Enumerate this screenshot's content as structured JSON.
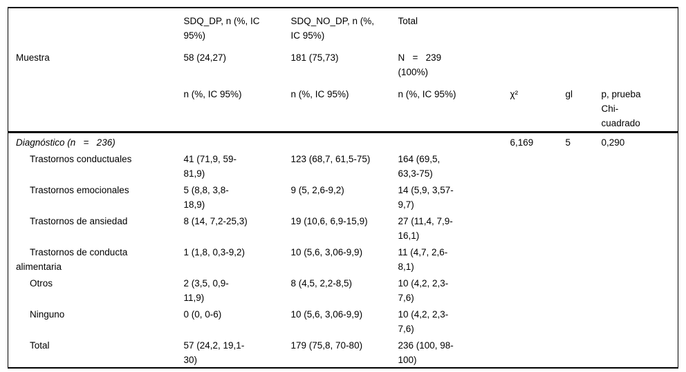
{
  "page": {
    "background_color": "#ffffff",
    "text_color": "#000000",
    "border_color": "#000000"
  },
  "table": {
    "header": {
      "sdq_dp": "SDQ_DP, n (%, IC\n95%)",
      "sdq_no_dp": "SDQ_NO_DP, n (%,\nIC 95%)",
      "total": "Total",
      "muestra": {
        "label": "Muestra",
        "sdq_dp": "58 (24,27)",
        "sdq_no_dp": "181 (75,73)",
        "total": "N   =   239\n(100%)"
      },
      "stats": {
        "sdq_dp": "n (%, IC 95%)",
        "sdq_no_dp": "n (%, IC 95%)",
        "total": "n (%, IC 95%)",
        "chi2": "χ²",
        "gl": "gl",
        "p": "p, prueba\nChi-\ncuadrado"
      }
    },
    "section": {
      "label": "Diagnóstico (n   =   236)",
      "chi2": "6,169",
      "gl": "5",
      "p": "0,290"
    },
    "rows": [
      {
        "label": "Trastornos conductuales",
        "sdq_dp": "41 (71,9, 59-\n81,9)",
        "sdq_no_dp": "123 (68,7, 61,5-75)",
        "total": "164 (69,5,\n63,3-75)"
      },
      {
        "label": "Trastornos emocionales",
        "sdq_dp": "5 (8,8, 3,8-\n18,9)",
        "sdq_no_dp": "9 (5, 2,6-9,2)",
        "total": "14 (5,9, 3,57-\n9,7)"
      },
      {
        "label": "Trastornos de ansiedad",
        "sdq_dp": "8 (14, 7,2-25,3)",
        "sdq_no_dp": "19 (10,6, 6,9-15,9)",
        "total": "27 (11,4, 7,9-\n16,1)"
      },
      {
        "label": "Trastornos de conducta\nalimentaria",
        "sdq_dp": "1 (1,8, 0,3-9,2)",
        "sdq_no_dp": "10 (5,6, 3,06-9,9)",
        "total": "11 (4,7, 2,6-\n8,1)"
      },
      {
        "label": "Otros",
        "sdq_dp": "2 (3,5, 0,9-\n11,9)",
        "sdq_no_dp": "8 (4,5, 2,2-8,5)",
        "total": "10 (4,2, 2,3-\n7,6)"
      },
      {
        "label": "Ninguno",
        "sdq_dp": "0 (0, 0-6)",
        "sdq_no_dp": "10 (5,6, 3,06-9,9)",
        "total": "10 (4,2, 2,3-\n7,6)"
      },
      {
        "label": "Total",
        "sdq_dp": "57 (24,2, 19,1-\n30)",
        "sdq_no_dp": "179 (75,8, 70-80)",
        "total": "236 (100, 98-\n100)"
      }
    ]
  }
}
